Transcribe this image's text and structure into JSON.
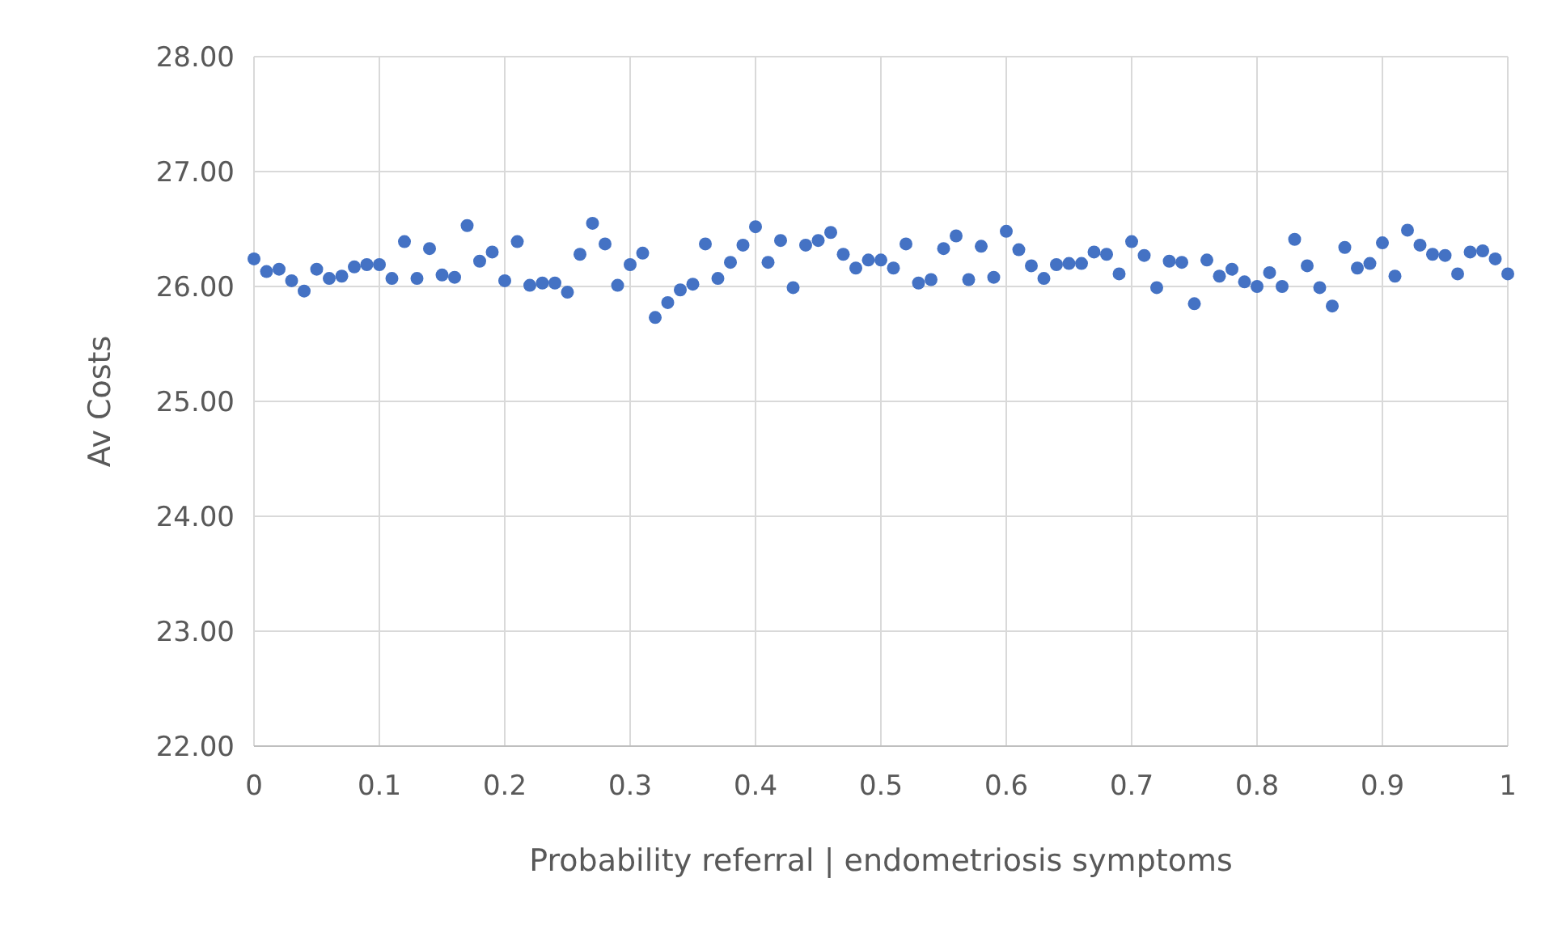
{
  "chart_data": {
    "type": "scatter",
    "xlabel": "Probability referral | endometriosis symptoms",
    "ylabel": "Av Costs",
    "x": [
      0,
      0.01,
      0.02,
      0.03,
      0.04,
      0.05,
      0.06,
      0.07,
      0.08,
      0.09,
      0.1,
      0.11,
      0.12,
      0.13,
      0.14,
      0.15,
      0.16,
      0.17,
      0.18,
      0.19,
      0.2,
      0.21,
      0.22,
      0.23,
      0.24,
      0.25,
      0.26,
      0.27,
      0.28,
      0.29,
      0.3,
      0.31,
      0.32,
      0.33,
      0.34,
      0.35,
      0.36,
      0.37,
      0.38,
      0.39,
      0.4,
      0.41,
      0.42,
      0.43,
      0.44,
      0.45,
      0.46,
      0.47,
      0.48,
      0.49,
      0.5,
      0.51,
      0.52,
      0.53,
      0.54,
      0.55,
      0.56,
      0.57,
      0.58,
      0.59,
      0.6,
      0.61,
      0.62,
      0.63,
      0.64,
      0.65,
      0.66,
      0.67,
      0.68,
      0.69,
      0.7,
      0.71,
      0.72,
      0.73,
      0.74,
      0.75,
      0.76,
      0.77,
      0.78,
      0.79,
      0.8,
      0.81,
      0.82,
      0.83,
      0.84,
      0.85,
      0.86,
      0.87,
      0.88,
      0.89,
      0.9,
      0.91,
      0.92,
      0.93,
      0.94,
      0.95,
      0.96,
      0.97,
      0.98,
      0.99,
      1
    ],
    "series": [
      {
        "color": "#4472c4",
        "values": [
          26.24,
          26.13,
          26.15,
          26.05,
          25.96,
          26.15,
          26.07,
          26.09,
          26.17,
          26.19,
          26.19,
          26.07,
          26.39,
          26.07,
          26.33,
          26.1,
          26.08,
          26.53,
          26.22,
          26.3,
          26.05,
          26.39,
          26.01,
          26.03,
          26.03,
          25.95,
          26.28,
          26.55,
          26.37,
          26.01,
          26.19,
          26.29,
          25.73,
          25.86,
          25.97,
          26.02,
          26.37,
          26.07,
          26.21,
          26.36,
          26.52,
          26.21,
          26.4,
          25.99,
          26.36,
          26.4,
          26.47,
          26.28,
          26.16,
          26.23,
          26.23,
          26.16,
          26.37,
          26.03,
          26.06,
          26.33,
          26.44,
          26.06,
          26.35,
          26.08,
          26.48,
          26.32,
          26.18,
          26.07,
          26.19,
          26.2,
          26.2,
          26.3,
          26.28,
          26.11,
          26.39,
          26.27,
          25.99,
          26.22,
          26.21,
          25.85,
          26.23,
          26.09,
          26.15,
          26.04,
          26,
          26.12,
          26,
          26.41,
          26.18,
          25.99,
          25.83,
          26.34,
          26.16,
          26.2,
          26.38,
          26.09,
          26.49,
          26.36,
          26.28,
          26.27,
          26.11,
          26.3,
          26.31,
          26.24,
          26.11
        ]
      }
    ],
    "xlim": [
      0,
      1
    ],
    "xticks": [
      0,
      0.1,
      0.2,
      0.3,
      0.4,
      0.5,
      0.6,
      0.7,
      0.8,
      0.9,
      1
    ],
    "ylim": [
      22,
      28
    ],
    "yticks": [
      {
        "value": 22,
        "label": "22.00"
      },
      {
        "value": 23,
        "label": "23.00"
      },
      {
        "value": 24,
        "label": "24.00"
      },
      {
        "value": 25,
        "label": "25.00"
      },
      {
        "value": 26,
        "label": "26.00"
      },
      {
        "value": 27,
        "label": "27.00"
      },
      {
        "value": 28,
        "label": "28.00"
      }
    ],
    "grid": true,
    "marker": "circle"
  }
}
